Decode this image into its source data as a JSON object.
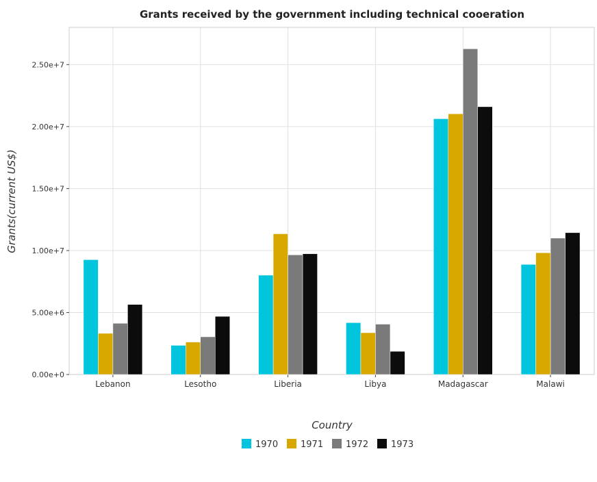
{
  "chart_data": {
    "type": "bar",
    "title": "Grants received by the government including technical cooeration",
    "xlabel": "Country",
    "ylabel": "Grants(current US$)",
    "categories": [
      "Lebanon",
      "Lesotho",
      "Liberia",
      "Libya",
      "Madagascar",
      "Malawi"
    ],
    "series": [
      {
        "name": "1970",
        "color": "#00c5dc",
        "values": [
          9260000,
          2350000,
          8010000,
          4180000,
          20630000,
          8880000
        ]
      },
      {
        "name": "1971",
        "color": "#d6a800",
        "values": [
          3320000,
          2620000,
          11350000,
          3370000,
          21030000,
          9820000
        ]
      },
      {
        "name": "1972",
        "color": "#7a7a7a",
        "values": [
          4130000,
          3040000,
          9650000,
          4060000,
          26270000,
          11000000
        ]
      },
      {
        "name": "1973",
        "color": "#0c0c0c",
        "values": [
          5650000,
          4690000,
          9740000,
          1870000,
          21600000,
          11440000
        ]
      }
    ],
    "ylim": [
      0,
      28000000
    ],
    "yticks": [
      0,
      5000000,
      10000000,
      15000000,
      20000000,
      25000000
    ],
    "ytick_labels": [
      "0.00e+0",
      "5.00e+6",
      "1.00e+7",
      "1.50e+7",
      "2.00e+7",
      "2.50e+7"
    ],
    "grid": true,
    "legend_position": "bottom-center"
  }
}
